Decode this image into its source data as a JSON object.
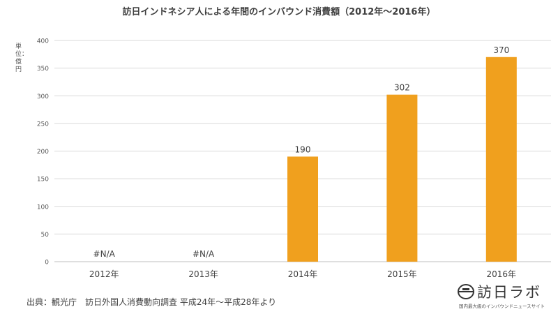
{
  "chart_data": {
    "type": "bar",
    "title": "訪日インドネシア人による年間のインバウンド消費額（2012年～2016年）",
    "ylabel": "単位：億円",
    "xlabel": "",
    "categories": [
      "2012年",
      "2013年",
      "2014年",
      "2015年",
      "2016年"
    ],
    "values": [
      null,
      null,
      190,
      302,
      370
    ],
    "data_labels": [
      "#N/A",
      "#N/A",
      "190",
      "302",
      "370"
    ],
    "ylim": [
      0,
      400
    ],
    "yticks": [
      "0",
      "50",
      "100",
      "150",
      "200",
      "250",
      "300",
      "350",
      "400"
    ],
    "grid": true,
    "bar_color": "#F0A01E"
  },
  "source_text": "出典：観光庁　訪日外国人消費動向調査 平成24年～平成28年より",
  "logo": {
    "name": "訪日ラボ",
    "tagline": "国内最大級のインバウンドニュースサイト"
  }
}
